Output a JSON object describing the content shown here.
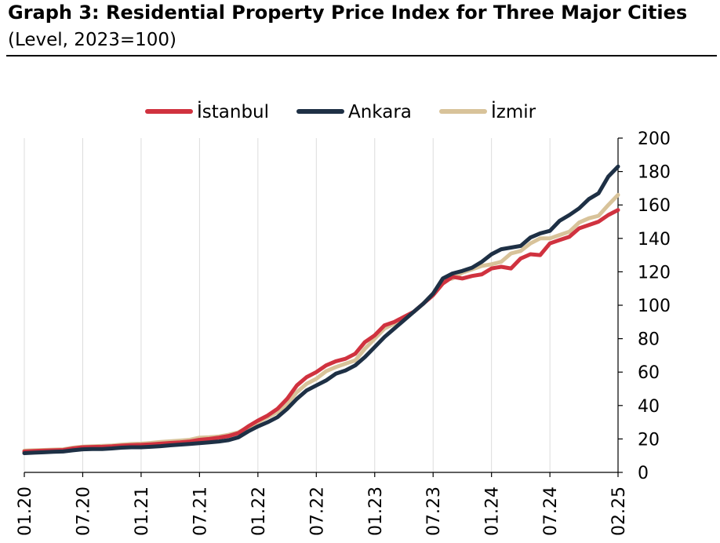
{
  "header": {
    "title": "Graph 3: Residential Property Price Index for Three Major Cities",
    "subtitle": "(Level, 2023=100)"
  },
  "chart_data": {
    "type": "line",
    "x": [
      "01.20",
      "02.20",
      "03.20",
      "04.20",
      "05.20",
      "06.20",
      "07.20",
      "08.20",
      "09.20",
      "10.20",
      "11.20",
      "12.20",
      "01.21",
      "02.21",
      "03.21",
      "04.21",
      "05.21",
      "06.21",
      "07.21",
      "08.21",
      "09.21",
      "10.21",
      "11.21",
      "12.21",
      "01.22",
      "02.22",
      "03.22",
      "04.22",
      "05.22",
      "06.22",
      "07.22",
      "08.22",
      "09.22",
      "10.22",
      "11.22",
      "12.22",
      "01.23",
      "02.23",
      "03.23",
      "04.23",
      "05.23",
      "06.23",
      "07.23",
      "08.23",
      "09.23",
      "10.23",
      "11.23",
      "12.23",
      "01.24",
      "02.24",
      "03.24",
      "04.24",
      "05.24",
      "06.24",
      "07.24",
      "08.24",
      "09.24",
      "10.24",
      "11.24",
      "12.24",
      "01.25",
      "02.25"
    ],
    "x_tick_labels": [
      "01.20",
      "07.20",
      "01.21",
      "07.21",
      "01.22",
      "07.22",
      "01.23",
      "07.23",
      "01.24",
      "07.24",
      "02.25"
    ],
    "ylim": [
      0,
      200
    ],
    "y_ticks": [
      0,
      20,
      40,
      60,
      80,
      100,
      120,
      140,
      160,
      180,
      200
    ],
    "y_axis_side": "right",
    "grid": "vertical",
    "legend": "top-center",
    "series": [
      {
        "name": "İstanbul",
        "color": "#d0323f",
        "values": [
          12.5,
          12.8,
          13.0,
          13.2,
          13.4,
          14.3,
          15.0,
          15.2,
          15.3,
          15.6,
          16.0,
          16.3,
          16.5,
          16.8,
          17.2,
          17.6,
          18.0,
          18.5,
          19.5,
          20.0,
          20.8,
          21.8,
          23.5,
          27.5,
          31.0,
          34.0,
          38.0,
          44.0,
          52.0,
          57.0,
          60.0,
          64.0,
          66.5,
          68.0,
          71.0,
          78.0,
          82.0,
          88.0,
          90.0,
          93.0,
          96.0,
          101.0,
          106.0,
          113.0,
          117.0,
          116.0,
          117.5,
          118.5,
          122.0,
          123.0,
          122.0,
          128.0,
          130.5,
          130.0,
          137.0,
          139.0,
          141.0,
          146.0,
          148.0,
          150.0,
          154.0,
          157.0
        ]
      },
      {
        "name": "Ankara",
        "color": "#1e3045",
        "values": [
          11.5,
          11.8,
          12.0,
          12.3,
          12.5,
          13.2,
          13.8,
          14.0,
          14.0,
          14.3,
          14.8,
          15.0,
          15.0,
          15.3,
          15.7,
          16.2,
          16.6,
          17.0,
          17.5,
          18.0,
          18.5,
          19.3,
          21.0,
          24.5,
          27.5,
          30.0,
          33.0,
          38.0,
          44.0,
          49.0,
          52.0,
          55.0,
          59.0,
          61.0,
          64.0,
          69.0,
          75.0,
          81.0,
          86.0,
          91.0,
          96.0,
          101.0,
          107.0,
          116.0,
          119.0,
          120.5,
          122.5,
          126.0,
          130.5,
          133.5,
          134.5,
          135.5,
          140.5,
          143.0,
          144.5,
          150.5,
          154.0,
          158.0,
          163.5,
          167.0,
          177.0,
          183.0
        ]
      },
      {
        "name": "İzmir",
        "color": "#d8c39a",
        "values": [
          13.0,
          13.2,
          13.4,
          13.6,
          13.8,
          14.8,
          15.4,
          15.6,
          15.8,
          16.1,
          16.6,
          17.0,
          17.2,
          17.6,
          18.2,
          18.6,
          19.0,
          19.5,
          20.8,
          21.0,
          21.5,
          22.5,
          24.0,
          27.0,
          30.0,
          33.0,
          36.0,
          41.0,
          48.0,
          53.0,
          56.0,
          60.5,
          63.0,
          65.0,
          67.0,
          74.0,
          80.0,
          86.0,
          89.0,
          92.0,
          96.0,
          101.0,
          107.0,
          115.0,
          116.0,
          119.5,
          121.5,
          123.5,
          124.5,
          126.0,
          131.0,
          132.5,
          137.0,
          140.0,
          140.0,
          142.0,
          144.0,
          149.5,
          152.0,
          153.5,
          160.0,
          166.0
        ]
      }
    ]
  }
}
